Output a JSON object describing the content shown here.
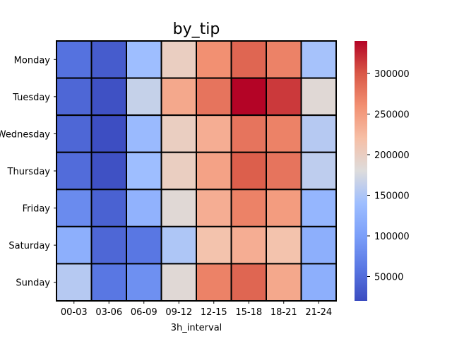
{
  "chart_data": {
    "type": "heatmap",
    "title": "by_tip",
    "xlabel": "3h_interval",
    "ylabel": "",
    "x_categories": [
      "00-03",
      "03-06",
      "06-09",
      "09-12",
      "12-15",
      "15-18",
      "18-21",
      "21-24"
    ],
    "y_categories": [
      "Monday",
      "Tuesday",
      "Wednesday",
      "Thursday",
      "Friday",
      "Saturday",
      "Sunday"
    ],
    "values": [
      [
        55000,
        35000,
        140000,
        200000,
        260000,
        290000,
        270000,
        145000
      ],
      [
        45000,
        25000,
        165000,
        240000,
        280000,
        340000,
        315000,
        185000
      ],
      [
        45000,
        22000,
        135000,
        200000,
        235000,
        280000,
        270000,
        155000
      ],
      [
        50000,
        25000,
        140000,
        200000,
        245000,
        295000,
        280000,
        160000
      ],
      [
        80000,
        40000,
        125000,
        185000,
        235000,
        270000,
        250000,
        130000
      ],
      [
        120000,
        45000,
        60000,
        150000,
        215000,
        235000,
        215000,
        120000
      ],
      [
        155000,
        60000,
        85000,
        185000,
        270000,
        290000,
        240000,
        120000
      ]
    ],
    "colorbar": {
      "colormap": "coolwarm",
      "range": [
        20000,
        340000
      ],
      "ticks": [
        50000,
        100000,
        150000,
        200000,
        250000,
        300000
      ],
      "tick_labels": [
        "50000",
        "100000",
        "150000",
        "200000",
        "250000",
        "300000"
      ]
    }
  }
}
